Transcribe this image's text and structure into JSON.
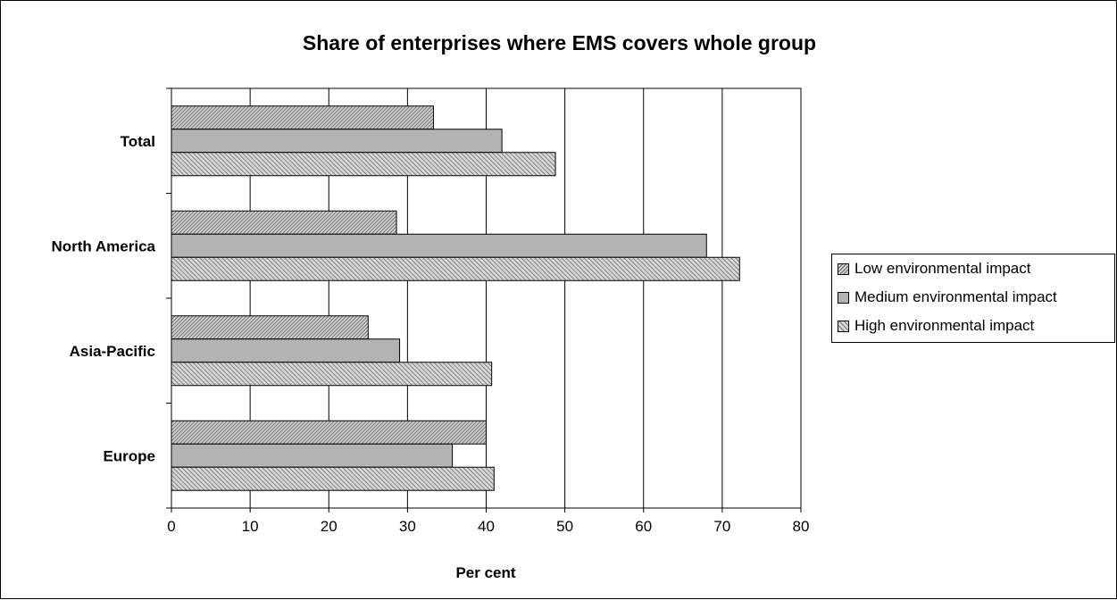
{
  "chart_data": {
    "type": "bar",
    "orientation": "horizontal",
    "title": "Share of enterprises where EMS covers whole group",
    "xlabel": "Per cent",
    "ylabel": "",
    "xlim": [
      0,
      80
    ],
    "x_ticks": [
      "0",
      "10",
      "20",
      "30",
      "40",
      "50",
      "60",
      "70",
      "80"
    ],
    "categories": [
      "Total",
      "North America",
      "Asia-Pacific",
      "Europe"
    ],
    "series": [
      {
        "name": "Low environmental impact",
        "values": [
          33.3,
          28.6,
          25.0,
          40.0
        ],
        "pattern": "diagonal-fine",
        "color": "#b8b8b8"
      },
      {
        "name": "Medium environmental impact",
        "values": [
          42.0,
          68.0,
          29.0,
          35.7
        ],
        "pattern": "solid",
        "color": "#b3b3b3"
      },
      {
        "name": "High environmental impact",
        "values": [
          48.8,
          72.2,
          40.7,
          41.0
        ],
        "pattern": "diagonal",
        "color": "#c4c4c4"
      }
    ],
    "grid": "vertical",
    "legend_position": "right"
  }
}
